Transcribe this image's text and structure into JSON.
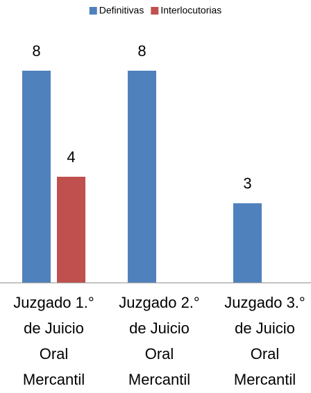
{
  "chart_data": {
    "type": "bar",
    "categories": [
      "Juzgado 1.° de Juicio Oral Mercantil",
      "Juzgado 2.° de Juicio Oral Mercantil",
      "Juzgado 3.° de Juicio Oral Mercantil"
    ],
    "series": [
      {
        "name": "Definitivas",
        "color": "#4f81bd",
        "values": [
          8,
          8,
          3
        ]
      },
      {
        "name": "Interlocutorias",
        "color": "#c0504d",
        "values": [
          4,
          null,
          null
        ]
      }
    ],
    "legend": "top"
  }
}
